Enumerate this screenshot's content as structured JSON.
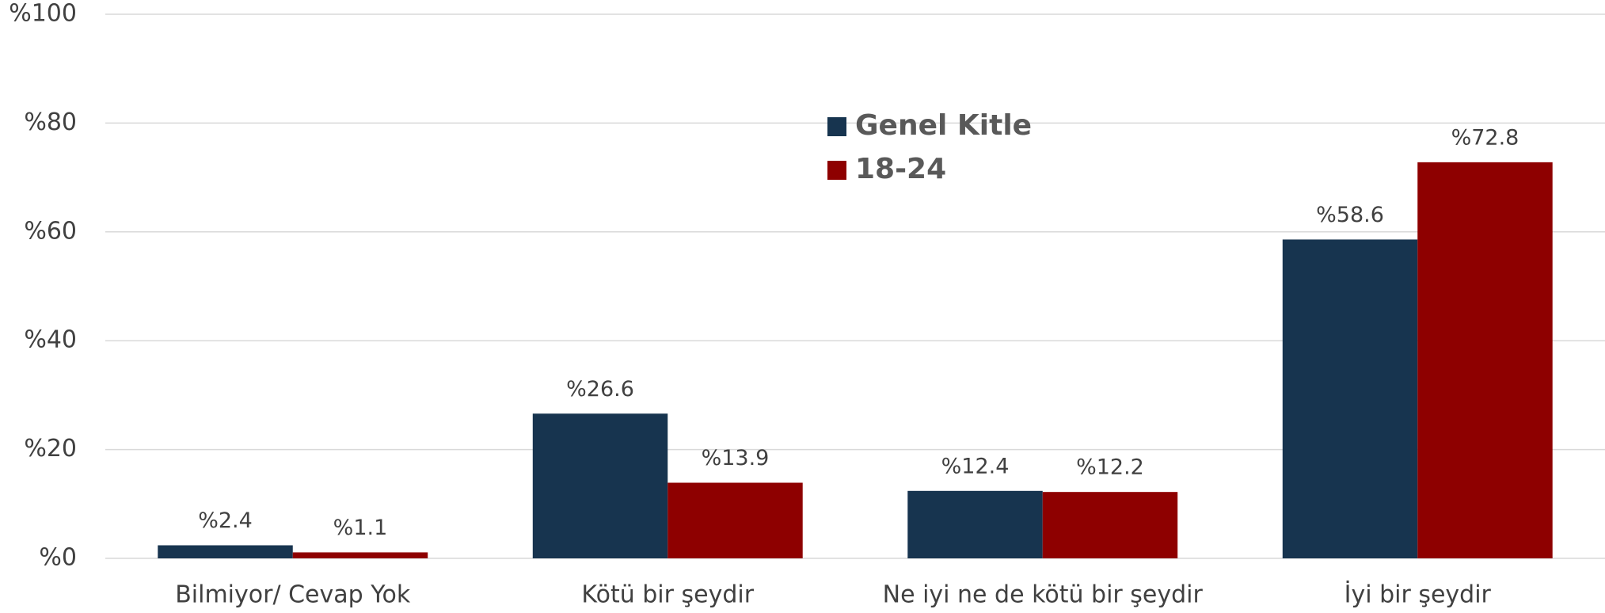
{
  "chart_data": {
    "type": "bar",
    "categories": [
      "Bilmiyor/ Cevap Yok",
      "Kötü bir şeydir",
      "Ne iyi ne de kötü bir şeydir",
      "İyi bir şeydir"
    ],
    "series": [
      {
        "name": "Genel Kitle",
        "color": "#17344f",
        "values": [
          2.4,
          26.6,
          12.4,
          58.6
        ],
        "value_labels": [
          "%2.4",
          "%26.6",
          "%12.4",
          "%58.6"
        ]
      },
      {
        "name": "18-24",
        "color": "#8e0000",
        "values": [
          1.1,
          13.9,
          12.2,
          72.8
        ],
        "value_labels": [
          "%1.1",
          "%13.9",
          "%12.2",
          "%72.8"
        ]
      }
    ],
    "ylim": [
      0,
      100
    ],
    "yticks": [
      {
        "value": 0,
        "label": "%0"
      },
      {
        "value": 20,
        "label": "%20"
      },
      {
        "value": 40,
        "label": "%40"
      },
      {
        "value": 60,
        "label": "%60"
      },
      {
        "value": 80,
        "label": "%80"
      },
      {
        "value": 100,
        "label": "%100"
      }
    ],
    "grid": true,
    "legend": "top"
  }
}
